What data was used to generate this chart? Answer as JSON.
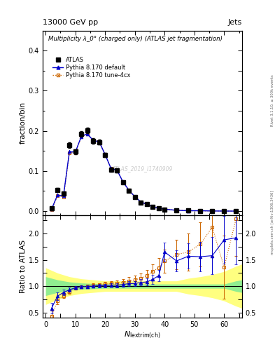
{
  "title_top": "13000 GeV pp",
  "title_right": "Jets",
  "panel1_title": "Multiplicity λ_0° (charged only) (ATLAS jet fragmentation)",
  "panel1_ylabel": "fraction/bin",
  "panel2_ylabel": "Ratio to ATLAS",
  "xlabel": "N$_{\\mathrm{lextrim(ch)}}$",
  "watermark": "ATLAS_2019_I1740909",
  "right_label": "mcplots.cern.ch [arXiv:1306.3436]",
  "rivet_label": "Rivet 3.1.10, ≥ 300k events",
  "atlas_x": [
    2,
    4,
    6,
    8,
    10,
    12,
    14,
    16,
    18,
    20,
    22,
    24,
    26,
    28,
    30,
    32,
    34,
    36,
    38,
    40,
    44,
    48,
    52,
    56,
    60,
    64
  ],
  "atlas_y": [
    0.007,
    0.053,
    0.043,
    0.165,
    0.148,
    0.193,
    0.201,
    0.175,
    0.172,
    0.14,
    0.103,
    0.102,
    0.072,
    0.05,
    0.035,
    0.022,
    0.017,
    0.01,
    0.007,
    0.004,
    0.002,
    0.002,
    0.001,
    0.0004,
    0.0002,
    0.0001
  ],
  "atlas_yerr": [
    0.001,
    0.004,
    0.004,
    0.007,
    0.006,
    0.007,
    0.007,
    0.007,
    0.006,
    0.005,
    0.005,
    0.005,
    0.004,
    0.003,
    0.002,
    0.002,
    0.001,
    0.001,
    0.001,
    0.0005,
    0.0003,
    0.0002,
    0.0001,
    8e-05,
    5e-05,
    3e-05
  ],
  "pythia_default_x": [
    2,
    4,
    6,
    8,
    10,
    12,
    14,
    16,
    18,
    20,
    22,
    24,
    26,
    28,
    30,
    32,
    34,
    36,
    38,
    40,
    44,
    48,
    52,
    56,
    60,
    64
  ],
  "pythia_default_y": [
    0.005,
    0.04,
    0.038,
    0.148,
    0.147,
    0.186,
    0.193,
    0.176,
    0.173,
    0.141,
    0.106,
    0.102,
    0.073,
    0.052,
    0.036,
    0.023,
    0.017,
    0.011,
    0.007,
    0.005,
    0.002,
    0.001,
    0.001,
    0.0004,
    0.0002,
    0.0001
  ],
  "pythia_tune4cx_x": [
    2,
    4,
    6,
    8,
    10,
    12,
    14,
    16,
    18,
    20,
    22,
    24,
    26,
    28,
    30,
    32,
    34,
    36,
    38,
    40,
    44,
    48,
    52,
    56,
    60,
    64
  ],
  "pythia_tune4cx_y": [
    0.004,
    0.038,
    0.036,
    0.145,
    0.146,
    0.185,
    0.192,
    0.176,
    0.173,
    0.141,
    0.106,
    0.102,
    0.073,
    0.052,
    0.036,
    0.023,
    0.017,
    0.011,
    0.007,
    0.005,
    0.002,
    0.001,
    0.001,
    0.0004,
    0.0002,
    0.0001
  ],
  "ratio_default_x": [
    2,
    4,
    6,
    8,
    10,
    12,
    14,
    16,
    18,
    20,
    22,
    24,
    26,
    28,
    30,
    32,
    34,
    36,
    38,
    40,
    44,
    48,
    52,
    56,
    60,
    64
  ],
  "ratio_default_y": [
    0.58,
    0.81,
    0.88,
    0.93,
    0.97,
    0.99,
    0.99,
    1.0,
    1.01,
    1.01,
    1.02,
    1.02,
    1.03,
    1.05,
    1.05,
    1.07,
    1.08,
    1.13,
    1.2,
    1.65,
    1.48,
    1.57,
    1.56,
    1.58,
    1.88,
    1.92
  ],
  "ratio_default_yerr": [
    0.1,
    0.07,
    0.05,
    0.04,
    0.03,
    0.03,
    0.03,
    0.03,
    0.03,
    0.03,
    0.03,
    0.04,
    0.04,
    0.05,
    0.05,
    0.06,
    0.07,
    0.09,
    0.11,
    0.18,
    0.2,
    0.24,
    0.28,
    0.35,
    0.45,
    0.5
  ],
  "ratio_tune4cx_x": [
    2,
    4,
    6,
    8,
    10,
    12,
    14,
    16,
    18,
    20,
    22,
    24,
    26,
    28,
    30,
    32,
    34,
    36,
    38,
    40,
    44,
    48,
    52,
    56,
    60,
    64
  ],
  "ratio_tune4cx_y": [
    0.43,
    0.72,
    0.82,
    0.89,
    0.96,
    0.99,
    1.0,
    1.02,
    1.03,
    1.04,
    1.05,
    1.06,
    1.07,
    1.1,
    1.12,
    1.15,
    1.2,
    1.28,
    1.35,
    1.48,
    1.6,
    1.65,
    1.8,
    2.12,
    1.36,
    2.28
  ],
  "ratio_tune4cx_yerr": [
    0.1,
    0.07,
    0.05,
    0.04,
    0.03,
    0.03,
    0.03,
    0.03,
    0.03,
    0.04,
    0.04,
    0.05,
    0.06,
    0.07,
    0.08,
    0.09,
    0.11,
    0.14,
    0.18,
    0.22,
    0.28,
    0.35,
    0.42,
    0.55,
    0.6,
    0.7
  ],
  "green_band_x": [
    0,
    4,
    8,
    12,
    16,
    20,
    24,
    28,
    32,
    36,
    40,
    44,
    48,
    52,
    56,
    60,
    64,
    66
  ],
  "green_band_low": [
    0.82,
    0.88,
    0.92,
    0.94,
    0.95,
    0.96,
    0.96,
    0.96,
    0.96,
    0.96,
    0.96,
    0.96,
    0.96,
    0.96,
    0.96,
    0.96,
    0.9,
    0.88
  ],
  "green_band_high": [
    1.18,
    1.12,
    1.08,
    1.06,
    1.05,
    1.04,
    1.04,
    1.04,
    1.04,
    1.04,
    1.04,
    1.04,
    1.04,
    1.04,
    1.04,
    1.04,
    1.1,
    1.12
  ],
  "yellow_band_x": [
    0,
    4,
    8,
    12,
    16,
    20,
    24,
    28,
    32,
    36,
    40,
    44,
    48,
    52,
    56,
    60,
    64,
    66
  ],
  "yellow_band_low": [
    0.65,
    0.75,
    0.82,
    0.86,
    0.88,
    0.9,
    0.9,
    0.9,
    0.9,
    0.9,
    0.9,
    0.9,
    0.85,
    0.82,
    0.78,
    0.72,
    0.62,
    0.58
  ],
  "yellow_band_high": [
    1.35,
    1.25,
    1.18,
    1.14,
    1.12,
    1.1,
    1.1,
    1.1,
    1.1,
    1.1,
    1.1,
    1.1,
    1.15,
    1.18,
    1.22,
    1.28,
    1.38,
    1.42
  ],
  "color_atlas": "#000000",
  "color_pythia_default": "#0000cc",
  "color_pythia_tune4cx": "#cc6600",
  "color_green_band": "#90EE90",
  "color_yellow_band": "#FFFF80",
  "panel1_ylim": [
    -0.01,
    0.45
  ],
  "panel1_yticks": [
    0.0,
    0.1,
    0.2,
    0.3,
    0.4
  ],
  "panel2_ylim": [
    0.4,
    2.35
  ],
  "panel2_yticks": [
    0.5,
    1.0,
    1.5,
    2.0
  ],
  "xlim": [
    -1,
    66
  ],
  "xticks": [
    0,
    10,
    20,
    30,
    40,
    50,
    60
  ]
}
